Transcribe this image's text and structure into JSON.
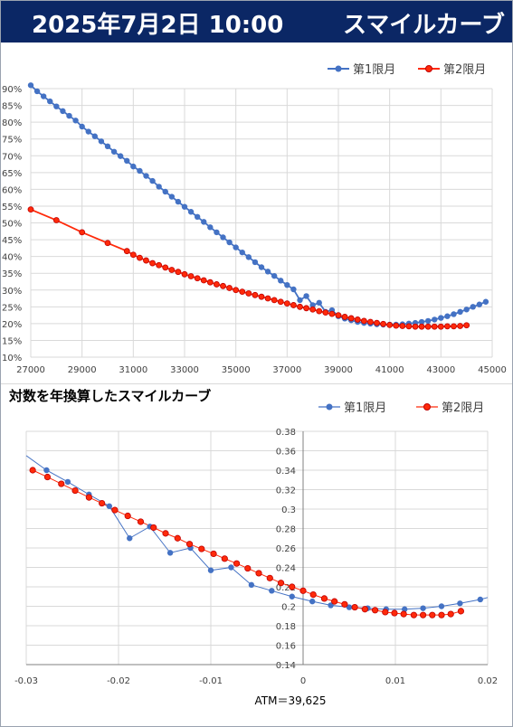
{
  "header": {
    "date": "2025年7月2日 10:00",
    "title": "スマイルカーブ"
  },
  "chart_data": [
    {
      "type": "line",
      "title": "",
      "xlim": [
        27000,
        45000
      ],
      "ylim": [
        0.1,
        0.9
      ],
      "x_ticks": [
        "27000",
        "29000",
        "31000",
        "33000",
        "35000",
        "37000",
        "39000",
        "41000",
        "43000",
        "45000"
      ],
      "y_ticks": [
        "10%",
        "15%",
        "20%",
        "25%",
        "30%",
        "35%",
        "40%",
        "45%",
        "50%",
        "55%",
        "60%",
        "65%",
        "70%",
        "75%",
        "80%",
        "85%",
        "90%"
      ],
      "legend_position": "top-right",
      "series": [
        {
          "name": "第1限月",
          "color": "#4472c4",
          "x": [
            27000,
            27250,
            27500,
            27750,
            28000,
            28250,
            28500,
            28750,
            29000,
            29250,
            29500,
            29750,
            30000,
            30250,
            30500,
            30750,
            31000,
            31250,
            31500,
            31750,
            32000,
            32250,
            32500,
            32750,
            33000,
            33250,
            33500,
            33750,
            34000,
            34250,
            34500,
            34750,
            35000,
            35250,
            35500,
            35750,
            36000,
            36250,
            36500,
            36750,
            37000,
            37250,
            37500,
            37750,
            38000,
            38250,
            38500,
            38750,
            39000,
            39250,
            39500,
            39750,
            40000,
            40250,
            40500,
            40750,
            41000,
            41250,
            41500,
            41750,
            42000,
            42250,
            42500,
            42750,
            43000,
            43250,
            43500,
            43750,
            44000,
            44250,
            44500,
            44750
          ],
          "y": [
            0.91,
            0.892,
            0.877,
            0.862,
            0.847,
            0.833,
            0.819,
            0.805,
            0.787,
            0.772,
            0.758,
            0.743,
            0.728,
            0.712,
            0.699,
            0.685,
            0.668,
            0.655,
            0.64,
            0.625,
            0.608,
            0.593,
            0.578,
            0.563,
            0.548,
            0.533,
            0.518,
            0.503,
            0.487,
            0.472,
            0.457,
            0.442,
            0.427,
            0.412,
            0.398,
            0.383,
            0.368,
            0.355,
            0.342,
            0.328,
            0.315,
            0.302,
            0.27,
            0.282,
            0.255,
            0.262,
            0.235,
            0.24,
            0.222,
            0.215,
            0.21,
            0.205,
            0.202,
            0.2,
            0.198,
            0.197,
            0.197,
            0.197,
            0.198,
            0.2,
            0.202,
            0.205,
            0.208,
            0.212,
            0.217,
            0.222,
            0.228,
            0.235,
            0.242,
            0.25,
            0.257,
            0.265
          ]
        },
        {
          "name": "第2限月",
          "color": "#ff2a0a",
          "x": [
            27000,
            28000,
            29000,
            30000,
            30750,
            31000,
            31250,
            31500,
            31750,
            32000,
            32250,
            32500,
            32750,
            33000,
            33250,
            33500,
            33750,
            34000,
            34250,
            34500,
            34750,
            35000,
            35250,
            35500,
            35750,
            36000,
            36250,
            36500,
            36750,
            37000,
            37250,
            37500,
            37750,
            38000,
            38250,
            38500,
            38750,
            39000,
            39250,
            39500,
            39750,
            40000,
            40250,
            40500,
            40750,
            41000,
            41250,
            41500,
            41750,
            42000,
            42250,
            42500,
            42750,
            43000,
            43250,
            43500,
            43750,
            44000
          ],
          "y": [
            0.54,
            0.508,
            0.472,
            0.44,
            0.416,
            0.405,
            0.396,
            0.388,
            0.38,
            0.374,
            0.367,
            0.36,
            0.354,
            0.347,
            0.341,
            0.335,
            0.329,
            0.323,
            0.317,
            0.312,
            0.306,
            0.3,
            0.295,
            0.29,
            0.285,
            0.28,
            0.275,
            0.27,
            0.265,
            0.26,
            0.255,
            0.25,
            0.246,
            0.242,
            0.237,
            0.233,
            0.229,
            0.225,
            0.22,
            0.216,
            0.212,
            0.208,
            0.205,
            0.202,
            0.199,
            0.196,
            0.194,
            0.193,
            0.192,
            0.191,
            0.191,
            0.191,
            0.191,
            0.191,
            0.192,
            0.192,
            0.193,
            0.195
          ]
        }
      ]
    },
    {
      "type": "scatter",
      "title": "対数を年換算したスマイルカーブ",
      "xlim": [
        -0.03,
        0.02
      ],
      "ylim": [
        0.14,
        0.38
      ],
      "x_ticks": [
        "-0.03",
        "-0.02",
        "-0.01",
        "0",
        "0.01",
        "0.02"
      ],
      "y_ticks": [
        "0.14",
        "0.16",
        "0.18",
        "0.2",
        "0.22",
        "0.24",
        "0.26",
        "0.28",
        "0.3",
        "0.32",
        "0.34",
        "0.36",
        "0.38"
      ],
      "legend_position": "top-right",
      "annotation": "ATM＝39,625",
      "series": [
        {
          "name": "第1限月",
          "color": "#4472c4",
          "x": [
            -0.0278,
            -0.0255,
            -0.0232,
            -0.021,
            -0.0188,
            -0.0166,
            -0.0144,
            -0.0122,
            -0.01,
            -0.0078,
            -0.0056,
            -0.0034,
            -0.0012,
            0.001,
            0.003,
            0.005,
            0.007,
            0.009,
            0.011,
            0.013,
            0.015,
            0.017,
            0.0192
          ],
          "y": [
            0.34,
            0.328,
            0.315,
            0.303,
            0.27,
            0.282,
            0.255,
            0.26,
            0.237,
            0.24,
            0.222,
            0.216,
            0.21,
            0.205,
            0.201,
            0.199,
            0.198,
            0.197,
            0.197,
            0.198,
            0.2,
            0.203,
            0.207
          ]
        },
        {
          "name": "第2限月",
          "color": "#ff2a0a",
          "x": [
            -0.0293,
            -0.0277,
            -0.0262,
            -0.0247,
            -0.0232,
            -0.0218,
            -0.0204,
            -0.019,
            -0.0176,
            -0.0162,
            -0.0149,
            -0.0136,
            -0.0123,
            -0.011,
            -0.0097,
            -0.0085,
            -0.0072,
            -0.006,
            -0.0048,
            -0.0036,
            -0.0024,
            -0.0012,
            0.0,
            0.0011,
            0.0023,
            0.0034,
            0.0045,
            0.0056,
            0.0067,
            0.0078,
            0.0089,
            0.0099,
            0.0109,
            0.012,
            0.013,
            0.014,
            0.015,
            0.016,
            0.0171
          ],
          "y": [
            0.34,
            0.333,
            0.326,
            0.319,
            0.312,
            0.306,
            0.299,
            0.293,
            0.287,
            0.281,
            0.275,
            0.27,
            0.264,
            0.259,
            0.254,
            0.249,
            0.244,
            0.239,
            0.234,
            0.229,
            0.224,
            0.22,
            0.216,
            0.212,
            0.208,
            0.205,
            0.202,
            0.199,
            0.197,
            0.196,
            0.194,
            0.193,
            0.192,
            0.191,
            0.191,
            0.191,
            0.191,
            0.192,
            0.195
          ]
        }
      ]
    }
  ]
}
